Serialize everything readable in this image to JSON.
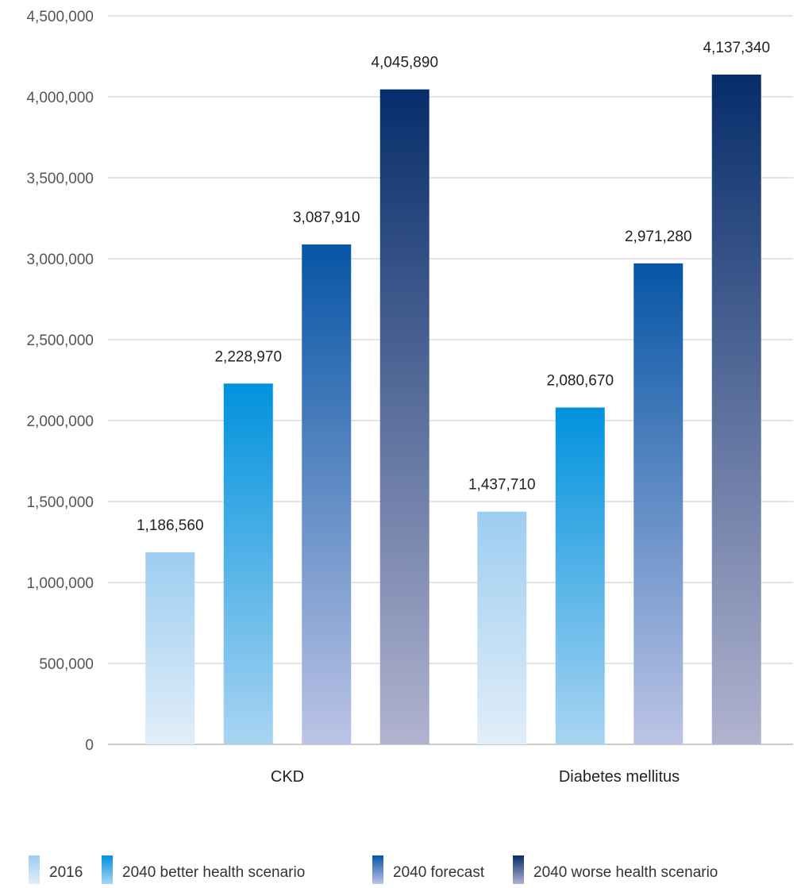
{
  "chart_data": {
    "type": "bar",
    "title": "",
    "xlabel": "",
    "ylabel": "",
    "ylim": [
      0,
      4500000
    ],
    "yticks": [
      0,
      500000,
      1000000,
      1500000,
      2000000,
      2500000,
      3000000,
      3500000,
      4000000,
      4500000
    ],
    "ytick_labels": [
      "0",
      "500,000",
      "1,000,000",
      "1,500,000",
      "2,000,000",
      "2,500,000",
      "3,000,000",
      "3,500,000",
      "4,000,000",
      "4,500,000"
    ],
    "grid": true,
    "legend_position": "bottom",
    "categories": [
      "CKD",
      "Diabetes mellitus"
    ],
    "series": [
      {
        "name": "2016",
        "values": [
          1186560,
          1437710
        ],
        "labels": [
          "1,186,560",
          "1,437,710"
        ],
        "color_top": "#9dcdf0",
        "color_bottom": "#e1eef9"
      },
      {
        "name": "2040 better health scenario",
        "values": [
          2228970,
          2080670
        ],
        "labels": [
          "2,228,970",
          "2,080,670"
        ],
        "color_top": "#0092dd",
        "color_bottom": "#a9d4f2"
      },
      {
        "name": "2040 forecast",
        "values": [
          3087910,
          2971280
        ],
        "labels": [
          "3,087,910",
          "2,971,280"
        ],
        "color_top": "#0755a5",
        "color_bottom": "#bcc4e6"
      },
      {
        "name": "2040 worse health scenario",
        "values": [
          4045890,
          4137340
        ],
        "labels": [
          "4,045,890",
          "4,137,340"
        ],
        "color_top": "#062d6a",
        "color_bottom": "#b1b3cf"
      }
    ]
  }
}
